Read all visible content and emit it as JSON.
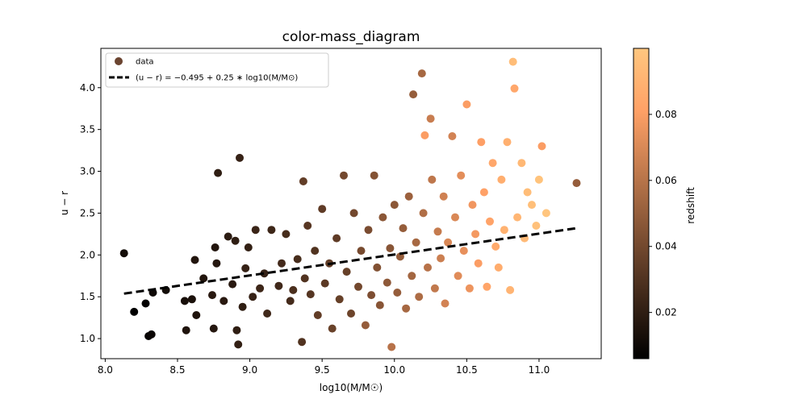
{
  "chart_data": {
    "type": "scatter",
    "title": "color-mass_diagram",
    "xlabel": "log10(M/M☉)",
    "ylabel": "u − r",
    "xlim": [
      7.97,
      11.43
    ],
    "ylim": [
      0.76,
      4.47
    ],
    "xticks": [
      {
        "value": 8.0,
        "label": "8.0"
      },
      {
        "value": 8.5,
        "label": "8.5"
      },
      {
        "value": 9.0,
        "label": "9.0"
      },
      {
        "value": 9.5,
        "label": "9.5"
      },
      {
        "value": 10.0,
        "label": "10.0"
      },
      {
        "value": 10.5,
        "label": "10.5"
      },
      {
        "value": 11.0,
        "label": "11.0"
      }
    ],
    "yticks": [
      {
        "value": 1.0,
        "label": "1.0"
      },
      {
        "value": 1.5,
        "label": "1.5"
      },
      {
        "value": 2.0,
        "label": "2.0"
      },
      {
        "value": 2.5,
        "label": "2.5"
      },
      {
        "value": 3.0,
        "label": "3.0"
      },
      {
        "value": 3.5,
        "label": "3.5"
      },
      {
        "value": 4.0,
        "label": "4.0"
      }
    ],
    "colorbar": {
      "label": "redshift",
      "colormap": "copper",
      "range": [
        0.006,
        0.1
      ],
      "ticks": [
        {
          "value": 0.02,
          "label": "0.02"
        },
        {
          "value": 0.04,
          "label": "0.04"
        },
        {
          "value": 0.06,
          "label": "0.06"
        },
        {
          "value": 0.08,
          "label": "0.08"
        }
      ]
    },
    "fit_line": {
      "label": "(u − r) = −0.495 + 0.25 ∗ log10(M/M⊙)",
      "intercept": -0.495,
      "slope": 0.25,
      "x_range": [
        8.13,
        11.25
      ],
      "style": "dashed",
      "color": "#000000"
    },
    "legend": {
      "position": "top-left",
      "scatter_label": "data"
    },
    "grid": false,
    "series": [
      {
        "name": "data",
        "points": [
          [
            8.13,
            2.02,
            0.012
          ],
          [
            8.2,
            1.32,
            0.006
          ],
          [
            8.28,
            1.42,
            0.007
          ],
          [
            8.3,
            1.03,
            0.008
          ],
          [
            8.32,
            1.05,
            0.009
          ],
          [
            8.33,
            1.55,
            0.01
          ],
          [
            8.42,
            1.58,
            0.012
          ],
          [
            8.55,
            1.45,
            0.013
          ],
          [
            8.56,
            1.1,
            0.015
          ],
          [
            8.6,
            1.47,
            0.014
          ],
          [
            8.62,
            1.94,
            0.016
          ],
          [
            8.63,
            1.28,
            0.015
          ],
          [
            8.68,
            1.72,
            0.016
          ],
          [
            8.74,
            1.52,
            0.018
          ],
          [
            8.75,
            1.12,
            0.017
          ],
          [
            8.76,
            2.09,
            0.016
          ],
          [
            8.77,
            1.9,
            0.017
          ],
          [
            8.78,
            2.98,
            0.02
          ],
          [
            8.82,
            1.45,
            0.018
          ],
          [
            8.85,
            2.22,
            0.019
          ],
          [
            8.88,
            1.65,
            0.018
          ],
          [
            8.9,
            2.17,
            0.02
          ],
          [
            8.91,
            1.1,
            0.02
          ],
          [
            8.92,
            0.93,
            0.021
          ],
          [
            8.93,
            3.16,
            0.022
          ],
          [
            8.95,
            1.38,
            0.02
          ],
          [
            8.97,
            1.84,
            0.022
          ],
          [
            8.99,
            2.09,
            0.021
          ],
          [
            9.02,
            1.5,
            0.022
          ],
          [
            9.04,
            2.3,
            0.023
          ],
          [
            9.07,
            1.6,
            0.024
          ],
          [
            9.1,
            1.78,
            0.022
          ],
          [
            9.12,
            1.3,
            0.025
          ],
          [
            9.15,
            2.3,
            0.024
          ],
          [
            9.2,
            1.63,
            0.025
          ],
          [
            9.22,
            1.9,
            0.026
          ],
          [
            9.25,
            2.25,
            0.027
          ],
          [
            9.28,
            1.45,
            0.026
          ],
          [
            9.3,
            1.58,
            0.028
          ],
          [
            9.33,
            1.95,
            0.027
          ],
          [
            9.36,
            0.96,
            0.03
          ],
          [
            9.37,
            2.88,
            0.035
          ],
          [
            9.38,
            1.72,
            0.03
          ],
          [
            9.4,
            2.35,
            0.032
          ],
          [
            9.42,
            1.53,
            0.031
          ],
          [
            9.45,
            2.05,
            0.03
          ],
          [
            9.47,
            1.28,
            0.035
          ],
          [
            9.5,
            2.55,
            0.034
          ],
          [
            9.52,
            1.66,
            0.033
          ],
          [
            9.55,
            1.9,
            0.035
          ],
          [
            9.57,
            1.12,
            0.037
          ],
          [
            9.6,
            2.2,
            0.034
          ],
          [
            9.62,
            1.47,
            0.036
          ],
          [
            9.65,
            2.95,
            0.04
          ],
          [
            9.67,
            1.8,
            0.036
          ],
          [
            9.7,
            1.3,
            0.038
          ],
          [
            9.72,
            2.5,
            0.04
          ],
          [
            9.75,
            1.62,
            0.04
          ],
          [
            9.77,
            2.05,
            0.041
          ],
          [
            9.8,
            1.16,
            0.05
          ],
          [
            9.82,
            2.3,
            0.042
          ],
          [
            9.84,
            1.52,
            0.043
          ],
          [
            9.86,
            2.95,
            0.045
          ],
          [
            9.88,
            1.85,
            0.044
          ],
          [
            9.9,
            1.4,
            0.046
          ],
          [
            9.92,
            2.45,
            0.047
          ],
          [
            9.95,
            1.67,
            0.048
          ],
          [
            9.97,
            2.08,
            0.046
          ],
          [
            9.98,
            0.9,
            0.06
          ],
          [
            10.0,
            2.6,
            0.047
          ],
          [
            10.02,
            1.55,
            0.05
          ],
          [
            10.04,
            1.98,
            0.05
          ],
          [
            10.06,
            2.32,
            0.05
          ],
          [
            10.08,
            1.36,
            0.055
          ],
          [
            10.1,
            2.7,
            0.052
          ],
          [
            10.12,
            1.75,
            0.054
          ],
          [
            10.13,
            3.92,
            0.05
          ],
          [
            10.15,
            2.15,
            0.055
          ],
          [
            10.17,
            1.5,
            0.057
          ],
          [
            10.19,
            4.17,
            0.055
          ],
          [
            10.2,
            2.5,
            0.058
          ],
          [
            10.21,
            3.43,
            0.08
          ],
          [
            10.23,
            1.85,
            0.06
          ],
          [
            10.25,
            3.63,
            0.065
          ],
          [
            10.26,
            2.9,
            0.062
          ],
          [
            10.28,
            1.6,
            0.063
          ],
          [
            10.3,
            2.28,
            0.064
          ],
          [
            10.32,
            1.96,
            0.066
          ],
          [
            10.34,
            2.7,
            0.067
          ],
          [
            10.35,
            1.42,
            0.068
          ],
          [
            10.37,
            2.15,
            0.07
          ],
          [
            10.4,
            3.42,
            0.068
          ],
          [
            10.42,
            2.45,
            0.07
          ],
          [
            10.44,
            1.75,
            0.072
          ],
          [
            10.46,
            2.95,
            0.073
          ],
          [
            10.48,
            2.05,
            0.074
          ],
          [
            10.5,
            3.8,
            0.08
          ],
          [
            10.52,
            1.6,
            0.076
          ],
          [
            10.54,
            2.6,
            0.077
          ],
          [
            10.56,
            2.25,
            0.078
          ],
          [
            10.58,
            1.9,
            0.08
          ],
          [
            10.6,
            3.35,
            0.081
          ],
          [
            10.62,
            2.75,
            0.082
          ],
          [
            10.64,
            1.62,
            0.084
          ],
          [
            10.66,
            2.4,
            0.083
          ],
          [
            10.68,
            3.1,
            0.085
          ],
          [
            10.7,
            2.1,
            0.086
          ],
          [
            10.72,
            1.85,
            0.087
          ],
          [
            10.74,
            2.9,
            0.088
          ],
          [
            10.76,
            2.3,
            0.09
          ],
          [
            10.78,
            3.35,
            0.089
          ],
          [
            10.8,
            1.58,
            0.091
          ],
          [
            10.82,
            4.31,
            0.095
          ],
          [
            10.83,
            3.99,
            0.085
          ],
          [
            10.85,
            2.45,
            0.092
          ],
          [
            10.88,
            3.1,
            0.093
          ],
          [
            10.9,
            2.2,
            0.094
          ],
          [
            10.92,
            2.75,
            0.095
          ],
          [
            10.95,
            2.6,
            0.096
          ],
          [
            10.98,
            2.35,
            0.097
          ],
          [
            11.0,
            2.9,
            0.098
          ],
          [
            11.02,
            3.3,
            0.08
          ],
          [
            11.05,
            2.5,
            0.099
          ],
          [
            11.26,
            2.86,
            0.05
          ]
        ]
      }
    ]
  }
}
